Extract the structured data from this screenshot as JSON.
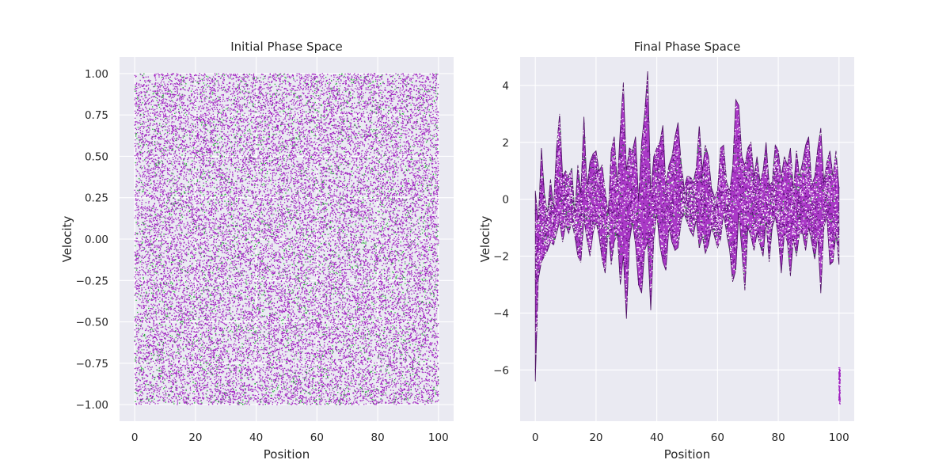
{
  "chart_data": [
    {
      "type": "scatter",
      "title": "Initial Phase Space",
      "xlabel": "Position",
      "ylabel": "Velocity",
      "xlim": [
        -5,
        105
      ],
      "ylim": [
        -1.1,
        1.1
      ],
      "xticks": [
        0,
        20,
        40,
        60,
        80,
        100
      ],
      "yticks": [
        -1.0,
        -0.75,
        -0.5,
        -0.25,
        0.0,
        0.25,
        0.5,
        0.75,
        1.0
      ],
      "xtick_labels": [
        "0",
        "20",
        "40",
        "60",
        "80",
        "100"
      ],
      "ytick_labels": [
        "−1.00",
        "−0.75",
        "−0.50",
        "−0.25",
        "0.00",
        "0.25",
        "0.50",
        "0.75",
        "1.00"
      ],
      "grid": true,
      "distribution": {
        "position_range": [
          0,
          100
        ],
        "velocity_range": [
          -1,
          1
        ]
      },
      "colors": {
        "points": "#a020c0",
        "accent": "#22aa33"
      }
    },
    {
      "type": "scatter",
      "title": "Final Phase Space",
      "xlabel": "Position",
      "ylabel": "Velocity",
      "xlim": [
        -5,
        105
      ],
      "ylim": [
        -7.8,
        5.0
      ],
      "xticks": [
        0,
        20,
        40,
        60,
        80,
        100
      ],
      "yticks": [
        -6,
        -4,
        -2,
        0,
        2,
        4
      ],
      "xtick_labels": [
        "0",
        "20",
        "40",
        "60",
        "80",
        "100"
      ],
      "ytick_labels": [
        "−6",
        "−4",
        "−2",
        "0",
        "2",
        "4"
      ],
      "grid": true,
      "envelope": {
        "position": [
          0,
          1,
          2,
          3,
          4,
          5,
          6,
          7,
          8,
          9,
          10,
          11,
          12,
          13,
          14,
          15,
          16,
          17,
          18,
          19,
          20,
          21,
          22,
          23,
          24,
          25,
          26,
          27,
          28,
          29,
          30,
          31,
          32,
          33,
          34,
          35,
          36,
          37,
          38,
          39,
          40,
          41,
          42,
          43,
          44,
          45,
          46,
          47,
          48,
          49,
          50,
          51,
          52,
          53,
          54,
          55,
          56,
          57,
          58,
          59,
          60,
          61,
          62,
          63,
          64,
          65,
          66,
          67,
          68,
          69,
          70,
          71,
          72,
          73,
          74,
          75,
          76,
          77,
          78,
          79,
          80,
          81,
          82,
          83,
          84,
          85,
          86,
          87,
          88,
          89,
          90,
          91,
          92,
          93,
          94,
          95,
          96,
          97,
          98,
          99,
          100
        ],
        "upper": [
          0.3,
          -0.8,
          1.8,
          0.2,
          -0.5,
          0.7,
          -0.3,
          1.8,
          3.0,
          0.8,
          1.0,
          0.8,
          1.1,
          -0.5,
          1.2,
          0.2,
          2.9,
          0.4,
          1.3,
          1.6,
          1.7,
          1.0,
          1.2,
          0.3,
          -0.5,
          1.7,
          2.2,
          0.5,
          2.5,
          4.1,
          1.0,
          1.8,
          1.7,
          2.2,
          0.0,
          2.0,
          3.0,
          4.5,
          0.2,
          1.5,
          1.8,
          2.0,
          2.6,
          0.5,
          1.2,
          1.5,
          2.2,
          2.7,
          1.3,
          0.4,
          0.8,
          0.8,
          0.6,
          1.1,
          2.6,
          1.0,
          1.9,
          1.5,
          0.4,
          0.1,
          0.3,
          1.8,
          1.9,
          0.6,
          0.3,
          1.1,
          3.5,
          3.3,
          1.5,
          1.2,
          1.8,
          2.0,
          0.8,
          1.5,
          0.6,
          1.0,
          2.0,
          0.5,
          0.6,
          1.9,
          1.7,
          0.8,
          1.5,
          1.2,
          1.8,
          0.3,
          1.7,
          0.8,
          1.3,
          1.9,
          2.2,
          0.5,
          0.8,
          1.8,
          2.5,
          0.6,
          1.3,
          1.7,
          0.8,
          1.7,
          0.4
        ],
        "lower": [
          -6.4,
          -2.8,
          -2.2,
          -2.0,
          -1.8,
          -1.5,
          -1.6,
          -1.2,
          -0.8,
          -1.5,
          -0.9,
          -1.2,
          -0.8,
          -1.3,
          -2.0,
          -2.2,
          -0.7,
          -1.4,
          -2.0,
          -1.2,
          -0.8,
          -1.3,
          -2.1,
          -2.6,
          -1.0,
          -2.3,
          -1.5,
          -1.2,
          -3.0,
          -2.0,
          -4.2,
          -1.5,
          -0.8,
          -1.6,
          -3.0,
          -3.3,
          -1.8,
          -1.5,
          -3.9,
          -1.4,
          -0.5,
          -1.6,
          -2.2,
          -2.5,
          -1.0,
          -1.5,
          -1.8,
          -1.7,
          -0.8,
          -0.5,
          -0.8,
          -1.1,
          -1.3,
          -0.7,
          -1.7,
          -1.3,
          -1.9,
          -1.6,
          -1.0,
          -1.3,
          -1.7,
          -1.4,
          -0.5,
          -1.2,
          -1.8,
          -2.9,
          -2.5,
          -0.5,
          -1.8,
          -3.2,
          -1.0,
          -1.3,
          -1.8,
          -1.2,
          -1.6,
          -2.0,
          -0.8,
          -2.2,
          -1.0,
          -0.6,
          -1.3,
          -2.6,
          -1.2,
          -1.5,
          -2.7,
          -1.4,
          -2.0,
          -1.2,
          -1.2,
          -1.8,
          -1.0,
          -1.5,
          -2.1,
          -1.3,
          -3.3,
          -1.0,
          -0.6,
          -2.3,
          -2.2,
          -1.2,
          -2.3
        ]
      },
      "outlier_cluster": {
        "position": [
          100,
          100
        ],
        "velocity": [
          -7.2,
          -5.9
        ]
      },
      "colors": {
        "points": "#a020c0",
        "accent": "#22aa33"
      }
    }
  ]
}
